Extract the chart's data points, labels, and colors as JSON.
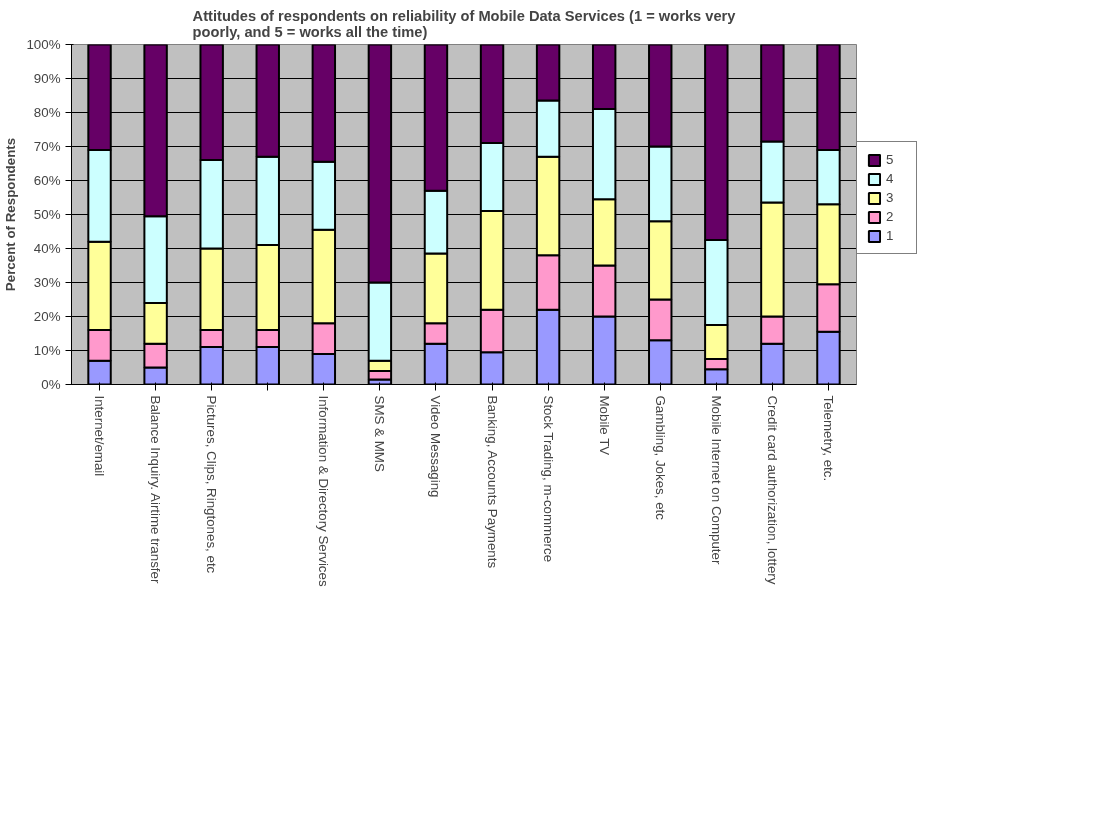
{
  "chart_data": {
    "type": "bar",
    "stacked": true,
    "title": "Attitudes of respondents on reliability of Mobile Data Services (1 = works very poorly, and 5 = works all the time)",
    "ylabel": "Percent of Respondents",
    "categories": [
      "Internet/email",
      "Balance Inquiry. Airtime transfer",
      "Pictures, Clips, Ringtones, etc",
      null,
      "Information & Directory Services",
      "SMS & MMS",
      "Video Messaging",
      "Banking, Accounts Payments",
      "Stock Trading, m-commerce",
      "Mobile TV",
      "Gambling, Jokes, etc",
      "Mobile Internet on Computer",
      "Credit card authorization, lottery",
      "Telemetry, etc."
    ],
    "series": [
      {
        "name": "1",
        "color": "#9999ff",
        "values": [
          7,
          5,
          11,
          11,
          9,
          1.5,
          12,
          9.5,
          22,
          20,
          13,
          4.5,
          12,
          15.5
        ]
      },
      {
        "name": "2",
        "color": "#ff99cc",
        "values": [
          9,
          7,
          5,
          5,
          9,
          2.5,
          6,
          12.5,
          16,
          15,
          12,
          3,
          8,
          14
        ]
      },
      {
        "name": "3",
        "color": "#ffff99",
        "values": [
          26,
          12,
          24,
          25,
          27.5,
          3,
          20.5,
          29,
          29,
          19.5,
          23,
          10,
          33.5,
          23.5
        ]
      },
      {
        "name": "4",
        "color": "#ccffff",
        "values": [
          27,
          25.5,
          26,
          26,
          20,
          23,
          18.5,
          20,
          16.5,
          26.5,
          22,
          25,
          18,
          16
        ]
      },
      {
        "name": "5",
        "color": "#660066",
        "values": [
          31,
          50.5,
          34,
          33,
          34.5,
          70,
          43,
          29,
          16.5,
          19,
          30,
          57.5,
          28.5,
          31
        ]
      }
    ],
    "ylim": [
      0,
      100
    ],
    "yticks": [
      {
        "value": 0,
        "label": "0%"
      },
      {
        "value": 10,
        "label": "10%"
      },
      {
        "value": 20,
        "label": "20%"
      },
      {
        "value": 30,
        "label": "30%"
      },
      {
        "value": 40,
        "label": "40%"
      },
      {
        "value": 50,
        "label": "50%"
      },
      {
        "value": 60,
        "label": "60%"
      },
      {
        "value": 70,
        "label": "70%"
      },
      {
        "value": 80,
        "label": "80%"
      },
      {
        "value": 90,
        "label": "90%"
      },
      {
        "value": 100,
        "label": "100%"
      }
    ],
    "grid": "y",
    "legend": "right"
  }
}
